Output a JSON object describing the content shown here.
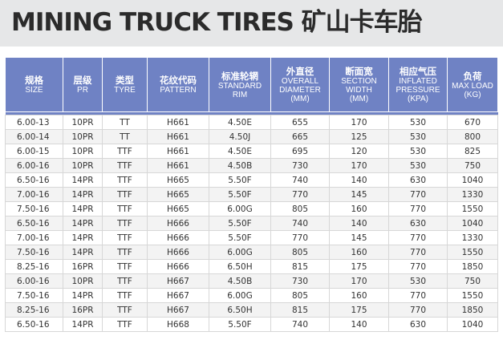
{
  "title": "MINING TRUCK TIRES 矿山卡车胎",
  "columns": [
    {
      "cn": "规格",
      "en": [
        "SIZE"
      ]
    },
    {
      "cn": "层级",
      "en": [
        "PR"
      ]
    },
    {
      "cn": "类型",
      "en": [
        "TYRE"
      ]
    },
    {
      "cn": "花纹代码",
      "en": [
        "PATTERN"
      ]
    },
    {
      "cn": "标准轮辋",
      "en": [
        "STANDARD",
        "RIM"
      ]
    },
    {
      "cn": "外直径",
      "en": [
        "OVERALL",
        "DIAMETER",
        "(MM)"
      ]
    },
    {
      "cn": "断面宽",
      "en": [
        "SECTION",
        "WIDTH",
        "(MM)"
      ]
    },
    {
      "cn": "相应气压",
      "en": [
        "INFLATED",
        "PRESSURE",
        "(KPA)"
      ]
    },
    {
      "cn": "负荷",
      "en": [
        "MAX LOAD",
        "(KG)"
      ]
    }
  ],
  "rows": [
    [
      "6.00-13",
      "10PR",
      "TT",
      "H661",
      "4.50E",
      "655",
      "170",
      "530",
      "670"
    ],
    [
      "6.00-14",
      "10PR",
      "TT",
      "H661",
      "4.50J",
      "665",
      "125",
      "530",
      "800"
    ],
    [
      "6.00-15",
      "10PR",
      "TTF",
      "H661",
      "4.50E",
      "695",
      "120",
      "530",
      "825"
    ],
    [
      "6.00-16",
      "10PR",
      "TTF",
      "H661",
      "4.50B",
      "730",
      "170",
      "530",
      "750"
    ],
    [
      "6.50-16",
      "14PR",
      "TTF",
      "H665",
      "5.50F",
      "740",
      "140",
      "630",
      "1040"
    ],
    [
      "7.00-16",
      "14PR",
      "TTF",
      "H665",
      "5.50F",
      "770",
      "145",
      "770",
      "1330"
    ],
    [
      "7.50-16",
      "14PR",
      "TTF",
      "H665",
      "6.00G",
      "805",
      "160",
      "770",
      "1550"
    ],
    [
      "6.50-16",
      "14PR",
      "TTF",
      "H666",
      "5.50F",
      "740",
      "140",
      "630",
      "1040"
    ],
    [
      "7.00-16",
      "14PR",
      "TTF",
      "H666",
      "5.50F",
      "770",
      "145",
      "770",
      "1330"
    ],
    [
      "7.50-16",
      "14PR",
      "TTF",
      "H666",
      "6.00G",
      "805",
      "160",
      "770",
      "1550"
    ],
    [
      "8.25-16",
      "16PR",
      "TTF",
      "H666",
      "6.50H",
      "815",
      "175",
      "770",
      "1850"
    ],
    [
      "6.00-16",
      "10PR",
      "TTF",
      "H667",
      "4.50B",
      "730",
      "170",
      "530",
      "750"
    ],
    [
      "7.50-16",
      "14PR",
      "TTF",
      "H667",
      "6.00G",
      "805",
      "160",
      "770",
      "1550"
    ],
    [
      "8.25-16",
      "16PR",
      "TTF",
      "H667",
      "6.50H",
      "815",
      "175",
      "770",
      "1850"
    ],
    [
      "6.50-16",
      "14PR",
      "TTF",
      "H668",
      "5.50F",
      "740",
      "140",
      "630",
      "1040"
    ]
  ]
}
